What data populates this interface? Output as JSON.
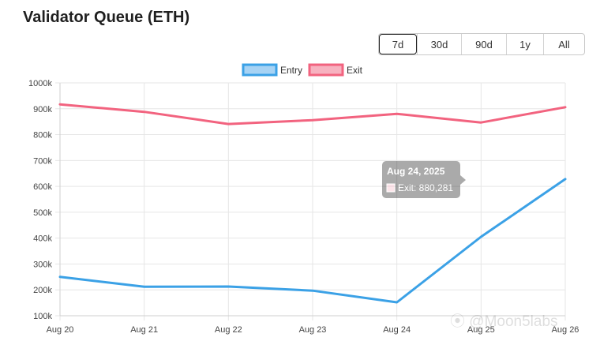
{
  "page": {
    "title": "Validator Queue (ETH)",
    "watermark": "⦿ @Moon5labs"
  },
  "range_buttons": [
    {
      "label": "7d",
      "active": true
    },
    {
      "label": "30d",
      "active": false
    },
    {
      "label": "90d",
      "active": false
    },
    {
      "label": "1y",
      "active": false
    },
    {
      "label": "All",
      "active": false
    }
  ],
  "tooltip": {
    "title": "Aug 24, 2025",
    "line": "Exit: 880,281"
  },
  "chart_data": {
    "type": "line",
    "categories": [
      "Aug 20",
      "Aug 21",
      "Aug 22",
      "Aug 23",
      "Aug 24",
      "Aug 25",
      "Aug 26"
    ],
    "series": [
      {
        "name": "Entry",
        "color": "#3ba1e6",
        "fill": "#a7d3f4",
        "values": [
          250000,
          212000,
          213000,
          197000,
          152000,
          405000,
          628000
        ]
      },
      {
        "name": "Exit",
        "color": "#f2637f",
        "fill": "#f7b2c0",
        "values": [
          917000,
          888000,
          841000,
          856000,
          880281,
          847000,
          906000
        ]
      }
    ],
    "ylim": [
      100000,
      1000000
    ],
    "yticks": [
      {
        "value": 100000,
        "label": "100k"
      },
      {
        "value": 200000,
        "label": "200k"
      },
      {
        "value": 300000,
        "label": "300k"
      },
      {
        "value": 400000,
        "label": "400k"
      },
      {
        "value": 500000,
        "label": "500k"
      },
      {
        "value": 600000,
        "label": "600k"
      },
      {
        "value": 700000,
        "label": "700k"
      },
      {
        "value": 800000,
        "label": "800k"
      },
      {
        "value": 900000,
        "label": "900k"
      },
      {
        "value": 1000000,
        "label": "1000k"
      }
    ],
    "grid": true,
    "legend": "top-center"
  }
}
